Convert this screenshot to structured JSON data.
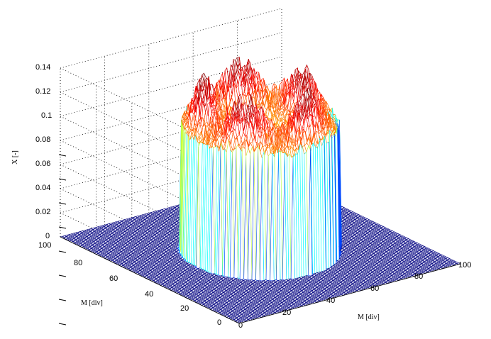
{
  "chart_data": {
    "type": "surface",
    "zlabel": "X [-]",
    "xlabel": "M [div]",
    "ylabel": "M [div]",
    "zlim": [
      0,
      0.14
    ],
    "xlim": [
      0,
      100
    ],
    "ylim": [
      0,
      100
    ],
    "z_ticks": [
      "0",
      "0.02",
      "0.04",
      "0.06",
      "0.08",
      "0.1",
      "0.12",
      "0.14"
    ],
    "x_ticks": [
      "0",
      "20",
      "40",
      "60",
      "80",
      "100"
    ],
    "y_ticks": [
      "0",
      "20",
      "40",
      "60",
      "80",
      "100"
    ],
    "grid": true,
    "colormap": "jet",
    "surface": {
      "shape": "noisy cylinder with crown rim",
      "center": [
        50,
        50
      ],
      "radius": 28,
      "plateau_height": 0.11,
      "peak_height": 0.14,
      "base_height": 0
    }
  }
}
